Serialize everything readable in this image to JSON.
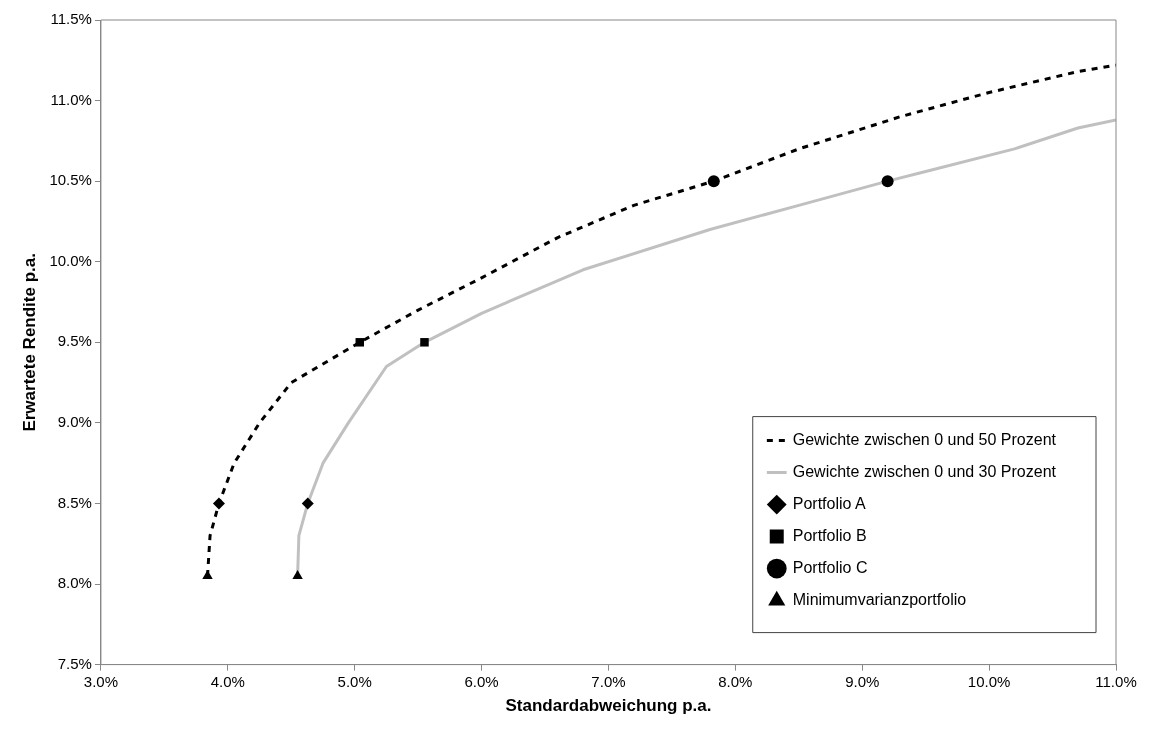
{
  "chart_data": {
    "type": "line",
    "xlabel": "Standardabweichung p.a.",
    "ylabel": "Erwartete Rendite p.a.",
    "xlim": [
      3.0,
      11.0
    ],
    "ylim": [
      7.5,
      11.5
    ],
    "xticks": [
      {
        "value": 3,
        "label": "3.0%"
      },
      {
        "value": 4,
        "label": "4.0%"
      },
      {
        "value": 5,
        "label": "5.0%"
      },
      {
        "value": 6,
        "label": "6.0%"
      },
      {
        "value": 7,
        "label": "7.0%"
      },
      {
        "value": 8,
        "label": "8.0%"
      },
      {
        "value": 9,
        "label": "9.0%"
      },
      {
        "value": 10,
        "label": "10.0%"
      },
      {
        "value": 11,
        "label": "11.0%"
      }
    ],
    "yticks": [
      {
        "value": 7.5,
        "label": "7.5%"
      },
      {
        "value": 8,
        "label": "8.0%"
      },
      {
        "value": 8.5,
        "label": "8.5%"
      },
      {
        "value": 9,
        "label": "9.0%"
      },
      {
        "value": 9.5,
        "label": "9.5%"
      },
      {
        "value": 10,
        "label": "10.0%"
      },
      {
        "value": 10.5,
        "label": "10.5%"
      },
      {
        "value": 11,
        "label": "11.0%"
      },
      {
        "value": 11.5,
        "label": "11.5%"
      }
    ],
    "grid": false,
    "legend": "bottom right",
    "series": [
      {
        "name": "Gewichte zwischen 0 und 50 Prozent",
        "type": "line",
        "line_style": "dashed",
        "marker": "none",
        "color": "#000000",
        "x": [
          3.84,
          3.86,
          3.93,
          4.05,
          4.25,
          4.5,
          5.04,
          5.5,
          6.0,
          6.6,
          7.2,
          7.83,
          8.5,
          9.3,
          10.0,
          10.7,
          11.0
        ],
        "values": [
          8.05,
          8.3,
          8.5,
          8.75,
          9.0,
          9.25,
          9.5,
          9.7,
          9.9,
          10.15,
          10.35,
          10.5,
          10.7,
          10.9,
          11.05,
          11.18,
          11.22
        ]
      },
      {
        "name": "Gewichte zwischen 0 und 30 Prozent",
        "type": "line",
        "line_style": "solid",
        "marker": "none",
        "color": "#c0c0c0",
        "x": [
          4.55,
          4.56,
          4.63,
          4.75,
          4.95,
          5.25,
          5.55,
          6.0,
          6.8,
          7.8,
          8.5,
          9.2,
          9.5,
          10.2,
          10.7,
          11.0
        ],
        "values": [
          8.05,
          8.3,
          8.5,
          8.75,
          9.0,
          9.35,
          9.5,
          9.68,
          9.95,
          10.2,
          10.35,
          10.5,
          10.56,
          10.7,
          10.83,
          10.88
        ]
      },
      {
        "name": "Portfolio A",
        "type": "scatter",
        "marker": "diamond",
        "color": "#000000",
        "x": [
          3.93,
          4.63
        ],
        "values": [
          8.5,
          8.5
        ]
      },
      {
        "name": "Portfolio B",
        "type": "scatter",
        "marker": "square",
        "color": "#000000",
        "x": [
          5.04,
          5.55
        ],
        "values": [
          9.5,
          9.5
        ]
      },
      {
        "name": "Portfolio C",
        "type": "scatter",
        "marker": "circle",
        "color": "#000000",
        "x": [
          7.83,
          9.2
        ],
        "values": [
          10.5,
          10.5
        ]
      },
      {
        "name": "Minimumvarianzportfolio",
        "type": "scatter",
        "marker": "triangle",
        "color": "#000000",
        "x": [
          3.84,
          4.55
        ],
        "values": [
          8.05,
          8.05
        ]
      }
    ]
  }
}
